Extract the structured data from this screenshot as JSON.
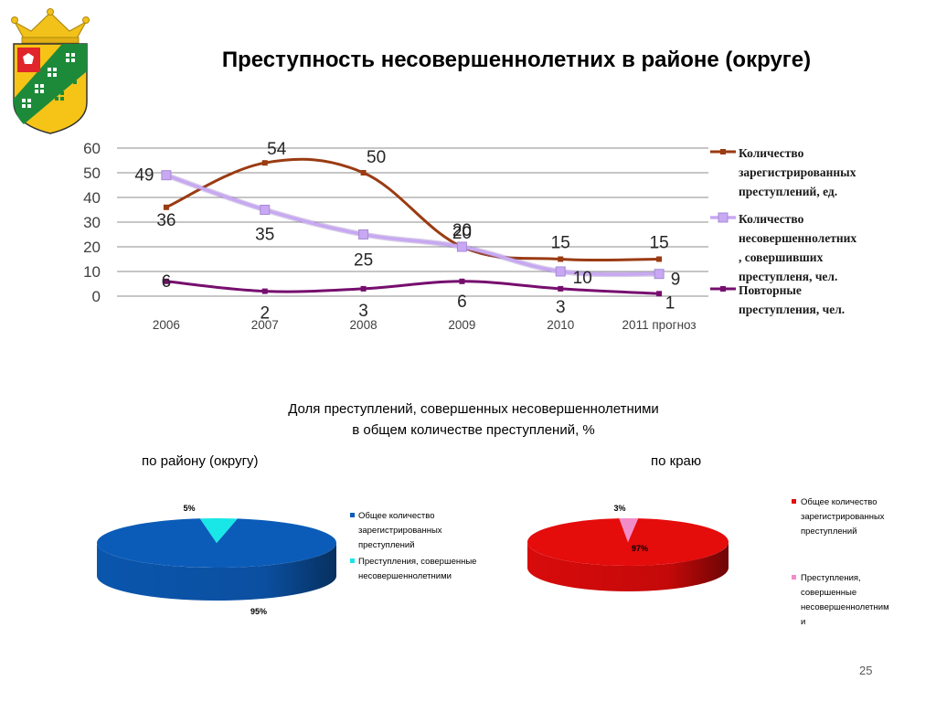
{
  "slide": {
    "title": "Преступность несовершеннолетних в районе (округе)",
    "page_number": "25"
  },
  "colors": {
    "series_total": "#9a3b12",
    "series_juveniles": "#c8a8f2",
    "series_repeat": "#760e6e",
    "pie_district_main": "#0b5cb8",
    "pie_district_slice": "#19e6e6",
    "pie_region_main": "#e50c0c",
    "pie_region_slice": "#f28cc8",
    "grid": "#8c8c8c"
  },
  "chart_data": [
    {
      "type": "line",
      "categories": [
        "2006",
        "2007",
        "2008",
        "2009",
        "2010",
        "2011 прогноз"
      ],
      "ylim": [
        0,
        60
      ],
      "yticks": [
        "0",
        "10",
        "20",
        "30",
        "40",
        "50",
        "60"
      ],
      "grid": true,
      "legend_position": "right",
      "series": [
        {
          "name_lines": [
            "Количество",
            "зарегистрированных",
            "преступлений, ед."
          ],
          "values": [
            36,
            54,
            50,
            20,
            15,
            15
          ]
        },
        {
          "name_lines": [
            "Количество",
            "несовершеннолетних",
            ", совершивших",
            "преступленя, чел."
          ],
          "values": [
            49,
            35,
            25,
            20,
            10,
            9
          ]
        },
        {
          "name_lines": [
            "Повторные",
            "преступления, чел."
          ],
          "values": [
            6,
            2,
            3,
            6,
            3,
            1
          ]
        }
      ]
    },
    {
      "type": "pie",
      "heading_lines": [
        "Доля преступлений, совершенных несовершеннолетними",
        "в общем количестве преступлений, %"
      ],
      "title": "по району (округу)",
      "slices": [
        {
          "legend_lines": [
            "Общее количество",
            "зарегистрированных",
            "преступлений"
          ],
          "value": 95,
          "label": "95%"
        },
        {
          "legend_lines": [
            "Преступления, совершенные",
            "несовершеннолетними"
          ],
          "value": 5,
          "label": "5%"
        }
      ]
    },
    {
      "type": "pie",
      "title": "по краю",
      "slices": [
        {
          "legend_lines": [
            "Общее количество",
            "зарегистрированных",
            "преступлений"
          ],
          "value": 97,
          "label": "97%"
        },
        {
          "legend_lines": [
            "Преступления,",
            "совершенные",
            "несовершеннолетним",
            "и"
          ],
          "value": 3,
          "label": "3%"
        }
      ]
    }
  ]
}
